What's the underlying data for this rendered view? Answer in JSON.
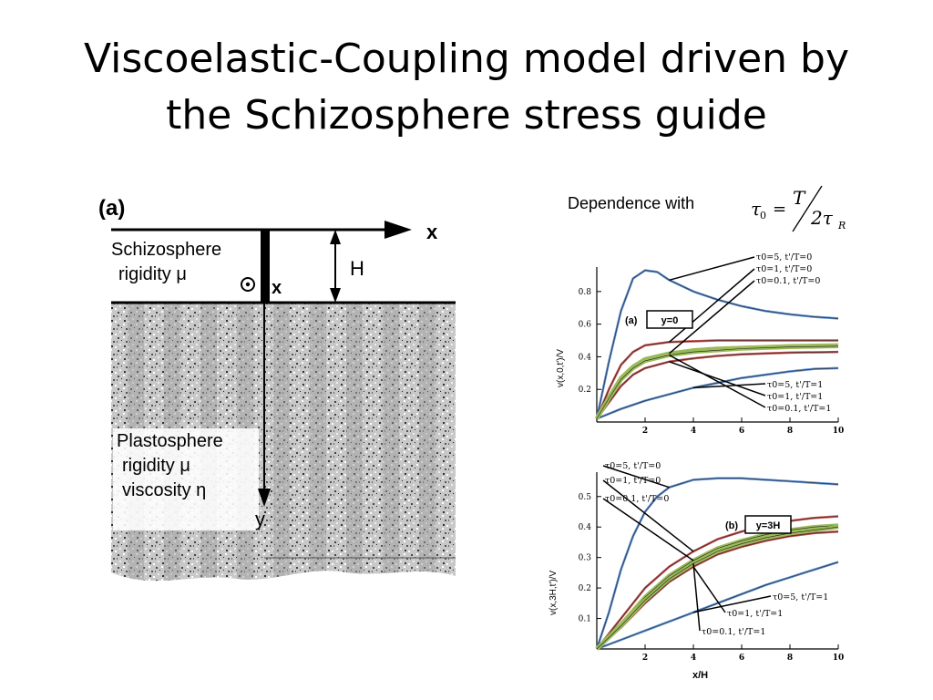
{
  "slide": {
    "title_line1": "Viscoelastic-Coupling model driven by",
    "title_line2": "the Schizosphere stress guide"
  },
  "figure_a": {
    "panel_label": "(a)",
    "axis_x": "x",
    "axis_y": "y",
    "depth_label": "H",
    "out_of_plane_label": "x",
    "schizo_line1": "Schizosphere",
    "schizo_line2": "rigidity μ",
    "plasto_line1": "Plastosphere",
    "plasto_line2": "rigidity μ",
    "plasto_line3": "viscosity η"
  },
  "dependence": {
    "caption": "Dependence with",
    "tau0": "τ",
    "sub0": "0",
    "eq": "=",
    "numerator": "T",
    "denominator": "2τ",
    "subR": "R"
  },
  "chart_data": [
    {
      "type": "line",
      "panel_label": "(a)",
      "box_label": "y=0",
      "xlabel": "",
      "ylabel": "v(x,0,t')/V",
      "xlim": [
        0,
        10
      ],
      "ylim": [
        0,
        0.95
      ],
      "xticks": [
        "2",
        "4",
        "6",
        "8",
        "10"
      ],
      "yticks": [
        "0.2",
        "0.4",
        "0.6",
        "0.8"
      ],
      "ytick_values": [
        0.2,
        0.4,
        0.6,
        0.8
      ],
      "series": [
        {
          "name": "τ0=5, t'/T=0",
          "color": "#5b8ccf",
          "x": [
            0,
            0.5,
            1,
            1.5,
            2,
            2.5,
            3,
            4,
            5,
            6,
            7,
            8,
            9,
            10
          ],
          "y": [
            0.02,
            0.37,
            0.68,
            0.88,
            0.93,
            0.92,
            0.87,
            0.8,
            0.75,
            0.71,
            0.68,
            0.66,
            0.645,
            0.635
          ]
        },
        {
          "name": "τ0=1, t'/T=0",
          "color": "#c0504d",
          "x": [
            0,
            0.5,
            1,
            1.5,
            2,
            3,
            4,
            5,
            6,
            7,
            8,
            10
          ],
          "y": [
            0.02,
            0.2,
            0.35,
            0.43,
            0.47,
            0.49,
            0.495,
            0.5,
            0.5,
            0.5,
            0.5,
            0.5
          ]
        },
        {
          "name": "τ0=0.1, t'/T=0",
          "color": "#9bbb59",
          "x": [
            0,
            0.5,
            1,
            1.5,
            2,
            3,
            4,
            5,
            6,
            7,
            8,
            10
          ],
          "y": [
            0.02,
            0.15,
            0.27,
            0.34,
            0.385,
            0.42,
            0.44,
            0.45,
            0.455,
            0.46,
            0.465,
            0.47
          ]
        },
        {
          "name": "τ0=5, t'/T=1",
          "color": "#5b8ccf",
          "x": [
            0,
            1,
            2,
            3,
            4,
            5,
            6,
            7,
            8,
            9,
            10
          ],
          "y": [
            0.02,
            0.08,
            0.13,
            0.17,
            0.21,
            0.24,
            0.27,
            0.29,
            0.31,
            0.325,
            0.33
          ]
        },
        {
          "name": "τ0=1, t'/T=1",
          "color": "#c0504d",
          "x": [
            0,
            0.5,
            1,
            1.5,
            2,
            3,
            4,
            5,
            6,
            7,
            8,
            10
          ],
          "y": [
            0.02,
            0.12,
            0.22,
            0.29,
            0.33,
            0.37,
            0.39,
            0.405,
            0.415,
            0.42,
            0.425,
            0.43
          ]
        },
        {
          "name": "τ0=0.1, t'/T=1",
          "color": "#9bbb59",
          "x": [
            0,
            0.5,
            1,
            1.5,
            2,
            3,
            4,
            5,
            6,
            7,
            8,
            10
          ],
          "y": [
            0.02,
            0.145,
            0.26,
            0.33,
            0.375,
            0.41,
            0.43,
            0.44,
            0.45,
            0.455,
            0.46,
            0.465
          ]
        }
      ]
    },
    {
      "type": "line",
      "panel_label": "(b)",
      "box_label": "y=3H",
      "xlabel": "x/H",
      "ylabel": "v(x,3H,t')/V",
      "xlim": [
        0,
        10
      ],
      "ylim": [
        0,
        0.58
      ],
      "xticks": [
        "2",
        "4",
        "6",
        "8",
        "10"
      ],
      "yticks": [
        "0.1",
        "0.2",
        "0.3",
        "0.4",
        "0.5"
      ],
      "ytick_values": [
        0.1,
        0.2,
        0.3,
        0.4,
        0.5
      ],
      "series": [
        {
          "name": "τ0=5, t'/T=0",
          "color": "#5b8ccf",
          "x": [
            0,
            0.5,
            1,
            1.5,
            2,
            2.5,
            3,
            4,
            5,
            6,
            7,
            8,
            9,
            10
          ],
          "y": [
            0.0,
            0.12,
            0.26,
            0.37,
            0.45,
            0.5,
            0.53,
            0.555,
            0.56,
            0.56,
            0.555,
            0.55,
            0.545,
            0.54
          ]
        },
        {
          "name": "τ0=1, t'/T=0",
          "color": "#c0504d",
          "x": [
            0,
            1,
            2,
            3,
            4,
            5,
            6,
            7,
            8,
            9,
            10
          ],
          "y": [
            0.0,
            0.1,
            0.2,
            0.27,
            0.32,
            0.36,
            0.385,
            0.405,
            0.42,
            0.43,
            0.435
          ]
        },
        {
          "name": "τ0=0.1, t'/T=0",
          "color": "#9bbb59",
          "x": [
            0,
            1,
            2,
            3,
            4,
            5,
            6,
            7,
            8,
            9,
            10
          ],
          "y": [
            0.0,
            0.08,
            0.17,
            0.24,
            0.29,
            0.33,
            0.355,
            0.375,
            0.39,
            0.4,
            0.405
          ]
        },
        {
          "name": "τ0=5, t'/T=1",
          "color": "#5b8ccf",
          "x": [
            0,
            1,
            2,
            3,
            4,
            5,
            6,
            7,
            8,
            9,
            10
          ],
          "y": [
            0.0,
            0.03,
            0.06,
            0.09,
            0.12,
            0.15,
            0.18,
            0.21,
            0.235,
            0.26,
            0.285
          ]
        },
        {
          "name": "τ0=1, t'/T=1",
          "color": "#c0504d",
          "x": [
            0,
            1,
            2,
            3,
            4,
            5,
            6,
            7,
            8,
            9,
            10
          ],
          "y": [
            0.0,
            0.07,
            0.15,
            0.22,
            0.27,
            0.31,
            0.335,
            0.355,
            0.37,
            0.38,
            0.385
          ]
        },
        {
          "name": "τ0=0.1, t'/T=1",
          "color": "#9bbb59",
          "x": [
            0,
            1,
            2,
            3,
            4,
            5,
            6,
            7,
            8,
            9,
            10
          ],
          "y": [
            0.0,
            0.075,
            0.16,
            0.23,
            0.28,
            0.32,
            0.345,
            0.365,
            0.38,
            0.39,
            0.4
          ]
        }
      ],
      "annotations": []
    }
  ]
}
